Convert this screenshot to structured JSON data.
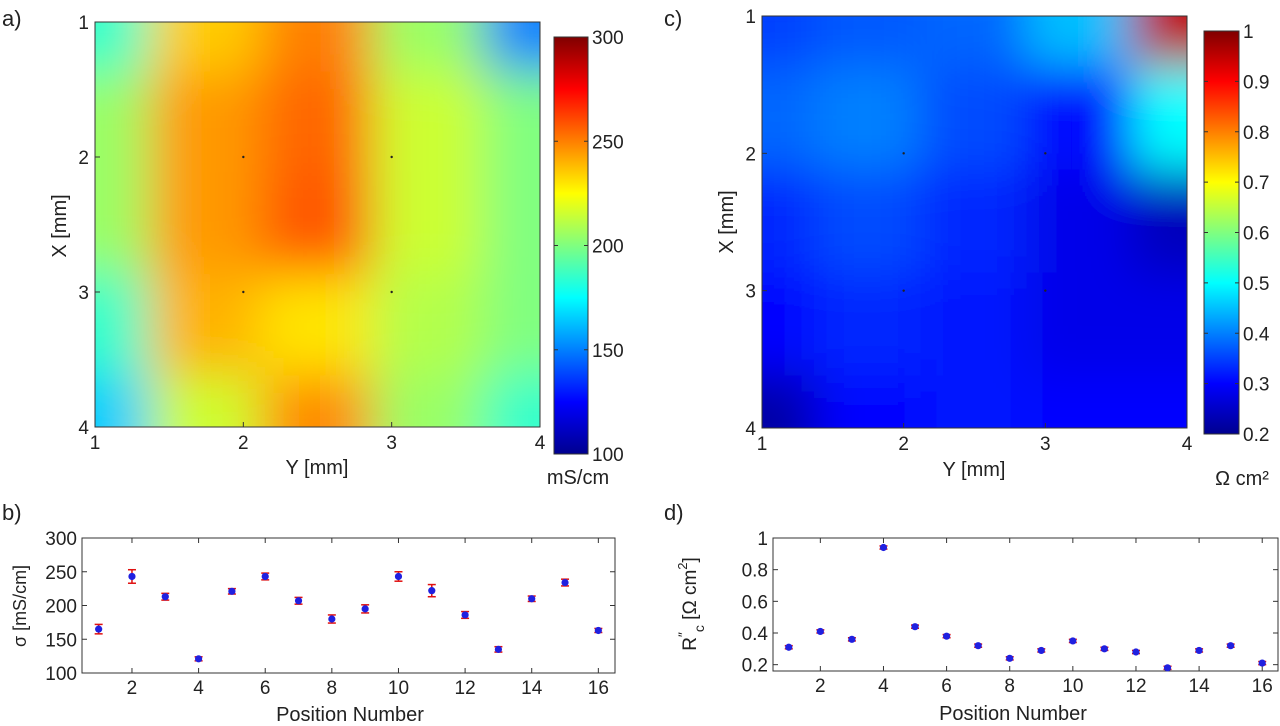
{
  "figure": {
    "panel_labels": [
      "a)",
      "b)",
      "c)",
      "d)"
    ]
  },
  "chart_data": [
    {
      "type": "heatmap",
      "panel": "a)",
      "xlabel": "Y [mm]",
      "ylabel": "X [mm]",
      "x_ticks": [
        "1",
        "2",
        "3",
        "4"
      ],
      "y_ticks": [
        "1",
        "2",
        "3",
        "4"
      ],
      "xlim": [
        1,
        4
      ],
      "ylim": [
        1,
        4
      ],
      "colorbar": {
        "min": 100,
        "max": 300,
        "ticks": [
          "300",
          "250",
          "200",
          "150",
          "100"
        ],
        "label": "mS/cm"
      },
      "grid_values": [
        [
          185,
          235,
          250,
          205,
          150
        ],
        [
          205,
          245,
          255,
          215,
          200
        ],
        [
          205,
          245,
          258,
          215,
          200
        ],
        [
          185,
          240,
          230,
          210,
          200
        ],
        [
          165,
          215,
          248,
          205,
          185
        ]
      ],
      "grid_positions_x": [
        1,
        1.75,
        2.5,
        3.25,
        4
      ],
      "grid_positions_y": [
        1,
        1.75,
        2.5,
        3.25,
        4
      ]
    },
    {
      "type": "scatter",
      "panel": "b)",
      "xlabel": "Position Number",
      "ylabel": "σ [mS/cm]",
      "xlim": [
        0.5,
        16.5
      ],
      "ylim": [
        100,
        300
      ],
      "x_ticks": [
        2,
        4,
        6,
        8,
        10,
        12,
        14,
        16
      ],
      "y_ticks": [
        100,
        150,
        200,
        250,
        300
      ],
      "x": [
        1,
        2,
        3,
        4,
        5,
        6,
        7,
        8,
        9,
        10,
        11,
        12,
        13,
        14,
        15,
        16
      ],
      "values": [
        165,
        243,
        213,
        121,
        221,
        243,
        207,
        180,
        195,
        243,
        222,
        186,
        135,
        210,
        234,
        163
      ],
      "errors": [
        7,
        10,
        5,
        3,
        4,
        5,
        5,
        6,
        6,
        7,
        9,
        5,
        4,
        4,
        5,
        3
      ]
    },
    {
      "type": "heatmap",
      "panel": "c)",
      "xlabel": "Y [mm]",
      "ylabel": "X [mm]",
      "x_ticks": [
        "1",
        "2",
        "3",
        "4"
      ],
      "y_ticks": [
        "1",
        "2",
        "3",
        "4"
      ],
      "xlim": [
        1,
        4
      ],
      "ylim": [
        1,
        4
      ],
      "colorbar": {
        "min": 0.2,
        "max": 1,
        "ticks": [
          "1",
          "0.9",
          "0.8",
          "0.7",
          "0.6",
          "0.5",
          "0.4",
          "0.3",
          "0.2"
        ],
        "label": "Ω cm²"
      },
      "grid_values": [
        [
          0.35,
          0.37,
          0.38,
          0.45,
          0.95
        ],
        [
          0.38,
          0.4,
          0.36,
          0.3,
          0.5
        ],
        [
          0.33,
          0.36,
          0.33,
          0.28,
          0.24
        ],
        [
          0.3,
          0.33,
          0.32,
          0.28,
          0.28
        ],
        [
          0.22,
          0.3,
          0.32,
          0.3,
          0.3
        ]
      ],
      "grid_positions_x": [
        1,
        1.75,
        2.5,
        3.25,
        4
      ],
      "grid_positions_y": [
        1,
        1.75,
        2.5,
        3.25,
        4
      ]
    },
    {
      "type": "scatter",
      "panel": "d)",
      "xlabel": "Position Number",
      "ylabel_main": "R",
      "ylabel_super": "″",
      "ylabel_sub": "c",
      "ylabel_unit": " [Ω cm",
      "ylabel_unit_super": "2",
      "ylabel_unit_end": "]",
      "xlim": [
        0.5,
        16.5
      ],
      "ylim": [
        0.16,
        1.0
      ],
      "x_ticks": [
        2,
        4,
        6,
        8,
        10,
        12,
        14,
        16
      ],
      "y_ticks": [
        0.2,
        0.4,
        0.6,
        0.8,
        1
      ],
      "y_tick_labels": [
        "0.2",
        "0.4",
        "0.6",
        "0.8",
        "1"
      ],
      "x": [
        1,
        2,
        3,
        4,
        5,
        6,
        7,
        8,
        9,
        10,
        11,
        12,
        13,
        14,
        15,
        16
      ],
      "values": [
        0.31,
        0.41,
        0.36,
        0.94,
        0.44,
        0.38,
        0.32,
        0.24,
        0.29,
        0.35,
        0.3,
        0.28,
        0.18,
        0.29,
        0.32,
        0.21
      ],
      "errors": [
        0.01,
        0.01,
        0.01,
        0.01,
        0.01,
        0.01,
        0.01,
        0.01,
        0.01,
        0.01,
        0.01,
        0.01,
        0.01,
        0.01,
        0.01,
        0.01
      ]
    }
  ]
}
